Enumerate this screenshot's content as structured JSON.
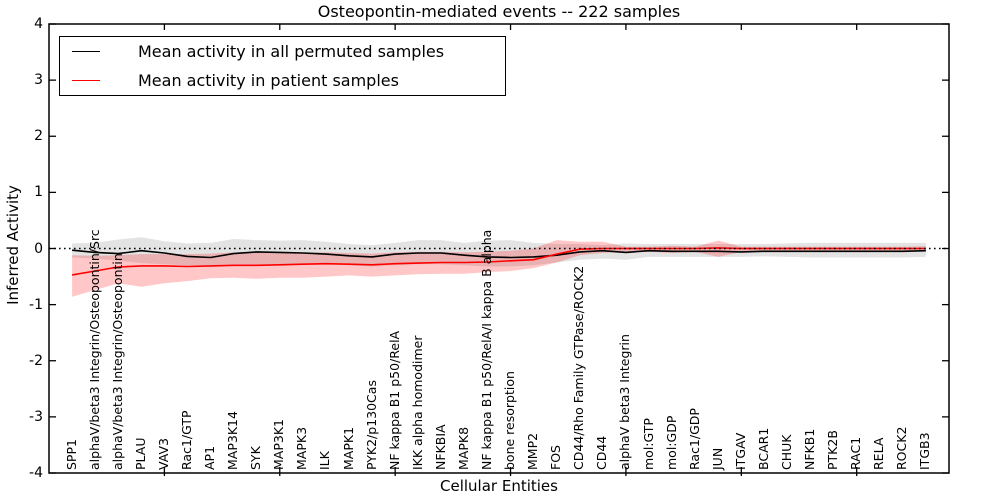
{
  "title": "Osteopontin-mediated events -- 222 samples",
  "legend": {
    "entries": [
      {
        "label": "Mean activity in all permuted samples",
        "color": "#000000"
      },
      {
        "label": "Mean activity in patient samples",
        "color": "#ff0000"
      }
    ],
    "position": "upper left"
  },
  "chart_data": {
    "type": "line",
    "title": "Osteopontin-mediated events -- 222 samples",
    "xlabel": "Cellular Entities",
    "ylabel": "Inferred Activity",
    "ylim": [
      -4,
      4
    ],
    "yticks": [
      4,
      3,
      2,
      1,
      0,
      -1,
      -2,
      -3,
      -4
    ],
    "grid": false,
    "zero_line": {
      "y": 0,
      "style": "dotted",
      "color": "#000000"
    },
    "legend_position": "upper left",
    "categories": [
      "SPP1",
      "alphaV/beta3 Integrin/Osteopontin/Src",
      "alphaV/beta3 Integrin/Osteopontin",
      "PLAU",
      "VAV3",
      "Rac1/GTP",
      "AP1",
      "MAP3K14",
      "SYK",
      "MAP3K1",
      "MAPK3",
      "ILK",
      "MAPK1",
      "PYK2/p130Cas",
      "NF kappa B1 p50/RelA",
      "IKK alpha homodimer",
      "NFKBIA",
      "MAPK8",
      "NF kappa B1 p50/RelA/I kappa B alpha",
      "bone resorption",
      "MMP2",
      "FOS",
      "CD44/Rho Family GTPase/ROCK2",
      "CD44",
      "alphaV beta3 Integrin",
      "mol:GTP",
      "mol:GDP",
      "Rac1/GDP",
      "JUN",
      "ITGAV",
      "BCAR1",
      "CHUK",
      "NFKB1",
      "PTK2B",
      "RAC1",
      "RELA",
      "ROCK2",
      "ITGB3"
    ],
    "series": [
      {
        "name": "Mean activity in all permuted samples",
        "color": "#000000",
        "line_width": 1.6,
        "values": [
          -0.03,
          -0.07,
          -0.09,
          -0.04,
          -0.08,
          -0.14,
          -0.16,
          -0.09,
          -0.06,
          -0.07,
          -0.08,
          -0.1,
          -0.13,
          -0.15,
          -0.1,
          -0.08,
          -0.08,
          -0.12,
          -0.15,
          -0.16,
          -0.15,
          -0.12,
          -0.06,
          -0.04,
          -0.07,
          -0.04,
          -0.05,
          -0.05,
          -0.05,
          -0.06,
          -0.05,
          -0.05,
          -0.05,
          -0.05,
          -0.05,
          -0.05,
          -0.05,
          -0.04
        ],
        "band": {
          "fill": "#000000",
          "fill_opacity": 0.11,
          "upper": [
            0.09,
            0.1,
            0.16,
            0.2,
            0.13,
            0.09,
            0.1,
            0.17,
            0.15,
            0.14,
            0.15,
            0.12,
            0.08,
            0.06,
            0.1,
            0.15,
            0.15,
            0.1,
            0.14,
            0.15,
            0.1,
            0.08,
            0.08,
            0.06,
            0.09,
            0.08,
            0.08,
            0.08,
            0.08,
            0.08,
            0.08,
            0.09,
            0.1,
            0.1,
            0.1,
            0.1,
            0.1,
            0.1
          ],
          "lower": [
            -0.16,
            -0.18,
            -0.22,
            -0.26,
            -0.28,
            -0.3,
            -0.3,
            -0.28,
            -0.28,
            -0.28,
            -0.28,
            -0.28,
            -0.3,
            -0.32,
            -0.3,
            -0.28,
            -0.28,
            -0.3,
            -0.32,
            -0.32,
            -0.3,
            -0.25,
            -0.2,
            -0.18,
            -0.2,
            -0.15,
            -0.15,
            -0.15,
            -0.15,
            -0.15,
            -0.14,
            -0.15,
            -0.16,
            -0.16,
            -0.16,
            -0.16,
            -0.16,
            -0.15
          ]
        }
      },
      {
        "name": "Mean activity in patient samples",
        "color": "#ff0000",
        "line_width": 1.6,
        "values": [
          -0.47,
          -0.4,
          -0.33,
          -0.31,
          -0.31,
          -0.32,
          -0.31,
          -0.3,
          -0.3,
          -0.29,
          -0.28,
          -0.27,
          -0.28,
          -0.29,
          -0.27,
          -0.26,
          -0.25,
          -0.25,
          -0.24,
          -0.22,
          -0.2,
          -0.1,
          -0.01,
          0.0,
          0.0,
          0.0,
          0.0,
          0.0,
          0.01,
          0.0,
          0.0,
          0.0,
          0.0,
          0.0,
          0.0,
          0.0,
          0.0,
          0.0
        ],
        "band": {
          "fill": "#ff0000",
          "fill_opacity": 0.22,
          "upper": [
            -0.12,
            -0.13,
            -0.12,
            -0.1,
            -0.1,
            -0.1,
            -0.09,
            -0.07,
            -0.07,
            -0.07,
            -0.07,
            -0.07,
            -0.08,
            -0.09,
            -0.07,
            -0.06,
            -0.06,
            -0.07,
            -0.06,
            -0.04,
            0.0,
            0.15,
            0.12,
            0.12,
            0.03,
            0.03,
            0.05,
            0.03,
            0.14,
            0.03,
            0.03,
            0.03,
            0.03,
            0.03,
            0.03,
            0.03,
            0.03,
            0.04
          ],
          "lower": [
            -0.86,
            -0.74,
            -0.62,
            -0.68,
            -0.62,
            -0.58,
            -0.53,
            -0.52,
            -0.54,
            -0.52,
            -0.52,
            -0.5,
            -0.48,
            -0.5,
            -0.48,
            -0.46,
            -0.45,
            -0.45,
            -0.42,
            -0.4,
            -0.35,
            -0.25,
            -0.12,
            -0.08,
            -0.06,
            -0.06,
            -0.08,
            -0.06,
            -0.15,
            -0.06,
            -0.04,
            -0.04,
            -0.04,
            -0.04,
            -0.04,
            -0.04,
            -0.04,
            -0.04
          ]
        }
      }
    ]
  }
}
